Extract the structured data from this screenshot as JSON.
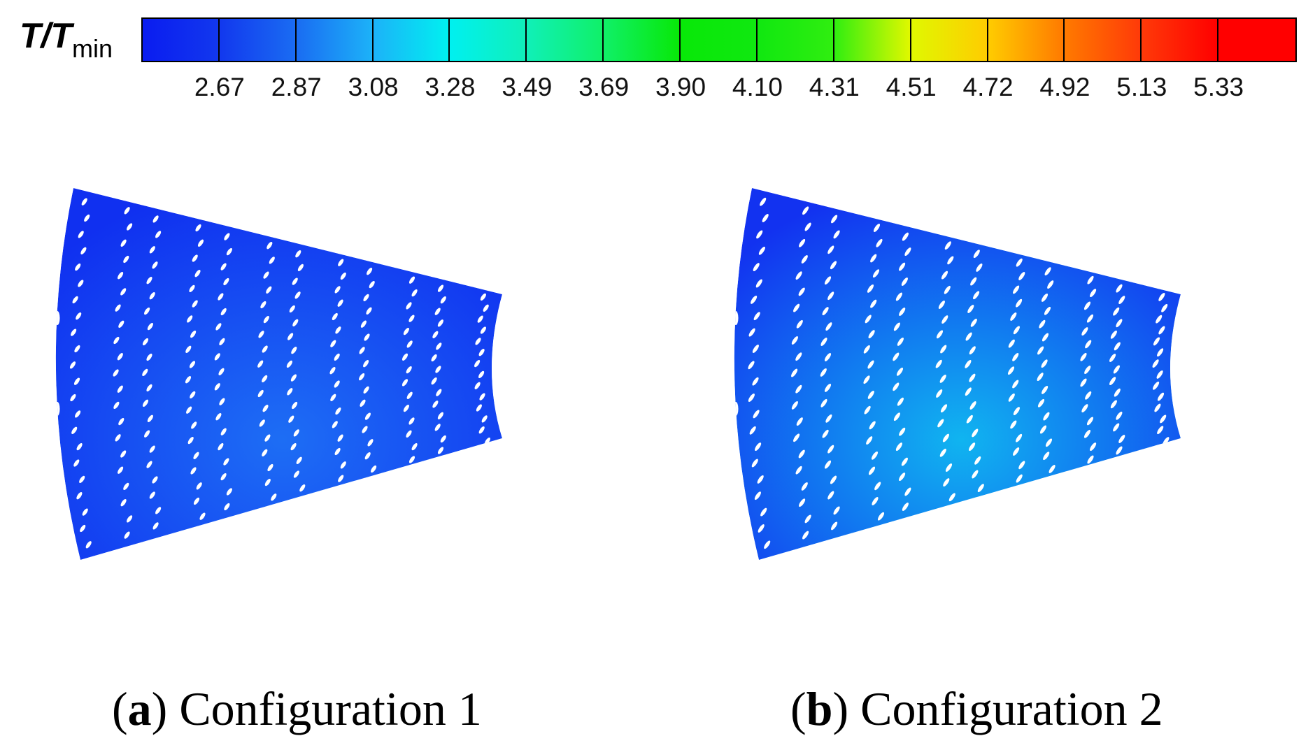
{
  "legend": {
    "symbol": "T/T",
    "subscript": "min",
    "ticks": [
      "2.67",
      "2.87",
      "3.08",
      "3.28",
      "3.49",
      "3.69",
      "3.90",
      "4.10",
      "4.31",
      "4.51",
      "4.72",
      "4.92",
      "5.13",
      "5.33"
    ],
    "colors": [
      "#0a1cf0",
      "#1238ee",
      "#1a6cf2",
      "#1cb2f8",
      "#00f0f0",
      "#10f0b8",
      "#10f068",
      "#08e808",
      "#10e810",
      "#30ee10",
      "#e0f800",
      "#ffcc00",
      "#ff7a00",
      "#ff3a08",
      "#ff0000"
    ]
  },
  "panels": [
    {
      "id": "a",
      "letter": "a",
      "title": "Configuration 1",
      "base_color": "#1030f0",
      "glow_color": "#28a0f8"
    },
    {
      "id": "b",
      "letter": "b",
      "title": "Configuration 2",
      "base_color": "#1232f0",
      "glow_color": "#10e0f0"
    }
  ]
}
